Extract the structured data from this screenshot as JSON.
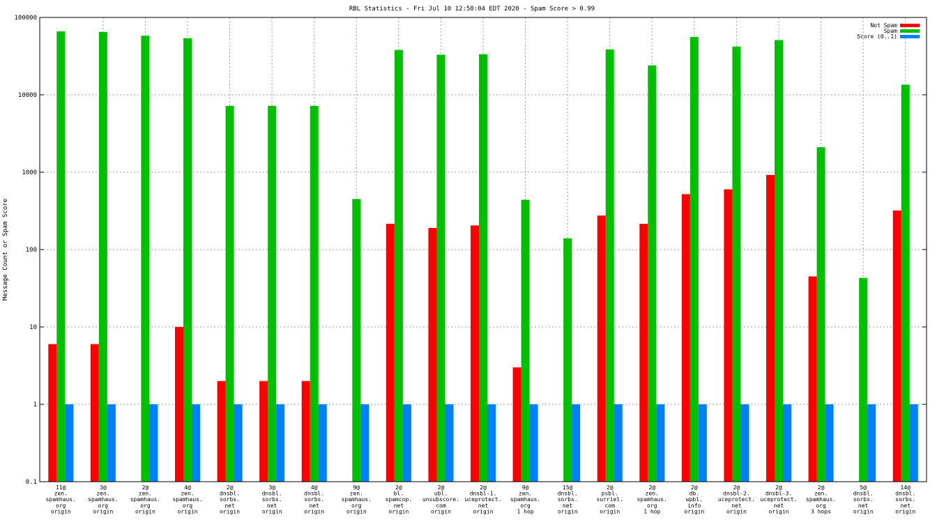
{
  "chart_data": {
    "type": "bar",
    "title": "RBL Statistics - Fri Jul 10 12:58:04 EDT 2020 - Spam Score > 0.99",
    "ylabel": "Message Count or Spam Score",
    "xlabel": "",
    "yscale": "log",
    "ylim": [
      0.1,
      100000
    ],
    "yticks": [
      "0.1",
      "1",
      "10",
      "100",
      "1000",
      "10000",
      "100000"
    ],
    "grid": true,
    "legend_position": "top-right",
    "categories": [
      [
        "11@",
        "zen.",
        "spamhaus.",
        "org",
        "origin"
      ],
      [
        "3@",
        "zen.",
        "spamhaus.",
        "org",
        "origin"
      ],
      [
        "2@",
        "zen.",
        "spamhaus.",
        "org",
        "origin"
      ],
      [
        "4@",
        "zen.",
        "spamhaus.",
        "org",
        "origin"
      ],
      [
        "2@",
        "dnsbl.",
        "sorbs.",
        "net",
        "origin"
      ],
      [
        "3@",
        "dnsbl.",
        "sorbs.",
        "net",
        "origin"
      ],
      [
        "4@",
        "dnsbl.",
        "sorbs.",
        "net",
        "origin"
      ],
      [
        "9@",
        "zen.",
        "spamhaus.",
        "org",
        "origin"
      ],
      [
        "2@",
        "bl.",
        "spamcop.",
        "net",
        "origin"
      ],
      [
        "2@",
        "ubl.",
        "unsubscore.",
        "com",
        "origin"
      ],
      [
        "2@",
        "dnsbl-1.",
        "uceprotect.",
        "net",
        "origin"
      ],
      [
        "9@",
        "zen.",
        "spamhaus.",
        "org",
        "1 hop"
      ],
      [
        "15@",
        "dnsbl.",
        "sorbs.",
        "net",
        "origin"
      ],
      [
        "2@",
        "psbl.",
        "surriel.",
        "com",
        "origin"
      ],
      [
        "2@",
        "zen.",
        "spamhaus.",
        "org",
        "1 hop"
      ],
      [
        "2@",
        "db.",
        "wpbl.",
        "info",
        "origin"
      ],
      [
        "2@",
        "dnsbl-2.",
        "uceprotect.",
        "net",
        "origin"
      ],
      [
        "2@",
        "dnsbl-3.",
        "uceprotect.",
        "net",
        "origin"
      ],
      [
        "2@",
        "zen.",
        "spamhaus.",
        "org",
        "3 hops"
      ],
      [
        "5@",
        "dnsbl.",
        "sorbs.",
        "net",
        "origin"
      ],
      [
        "14@",
        "dnsbl.",
        "sorbs.",
        "net",
        "origin"
      ]
    ],
    "series": [
      {
        "name": "Not Spam",
        "color": "#ff0000",
        "values": [
          6,
          6,
          null,
          10,
          2,
          2,
          2,
          null,
          215,
          190,
          205,
          3,
          null,
          275,
          215,
          520,
          600,
          920,
          45,
          null,
          320
        ]
      },
      {
        "name": "Spam",
        "color": "#00c000",
        "values": [
          66000,
          65000,
          58000,
          54000,
          7200,
          7200,
          7200,
          450,
          38000,
          33000,
          33500,
          440,
          140,
          38500,
          24000,
          56000,
          42000,
          51000,
          2100,
          43,
          13500
        ]
      },
      {
        "name": "Score (0..1)",
        "color": "#0080ff",
        "values": [
          1,
          1,
          1,
          1,
          1,
          1,
          1,
          1,
          1,
          1,
          1,
          1,
          1,
          1,
          1,
          1,
          1,
          1,
          1,
          1,
          1
        ]
      }
    ]
  }
}
